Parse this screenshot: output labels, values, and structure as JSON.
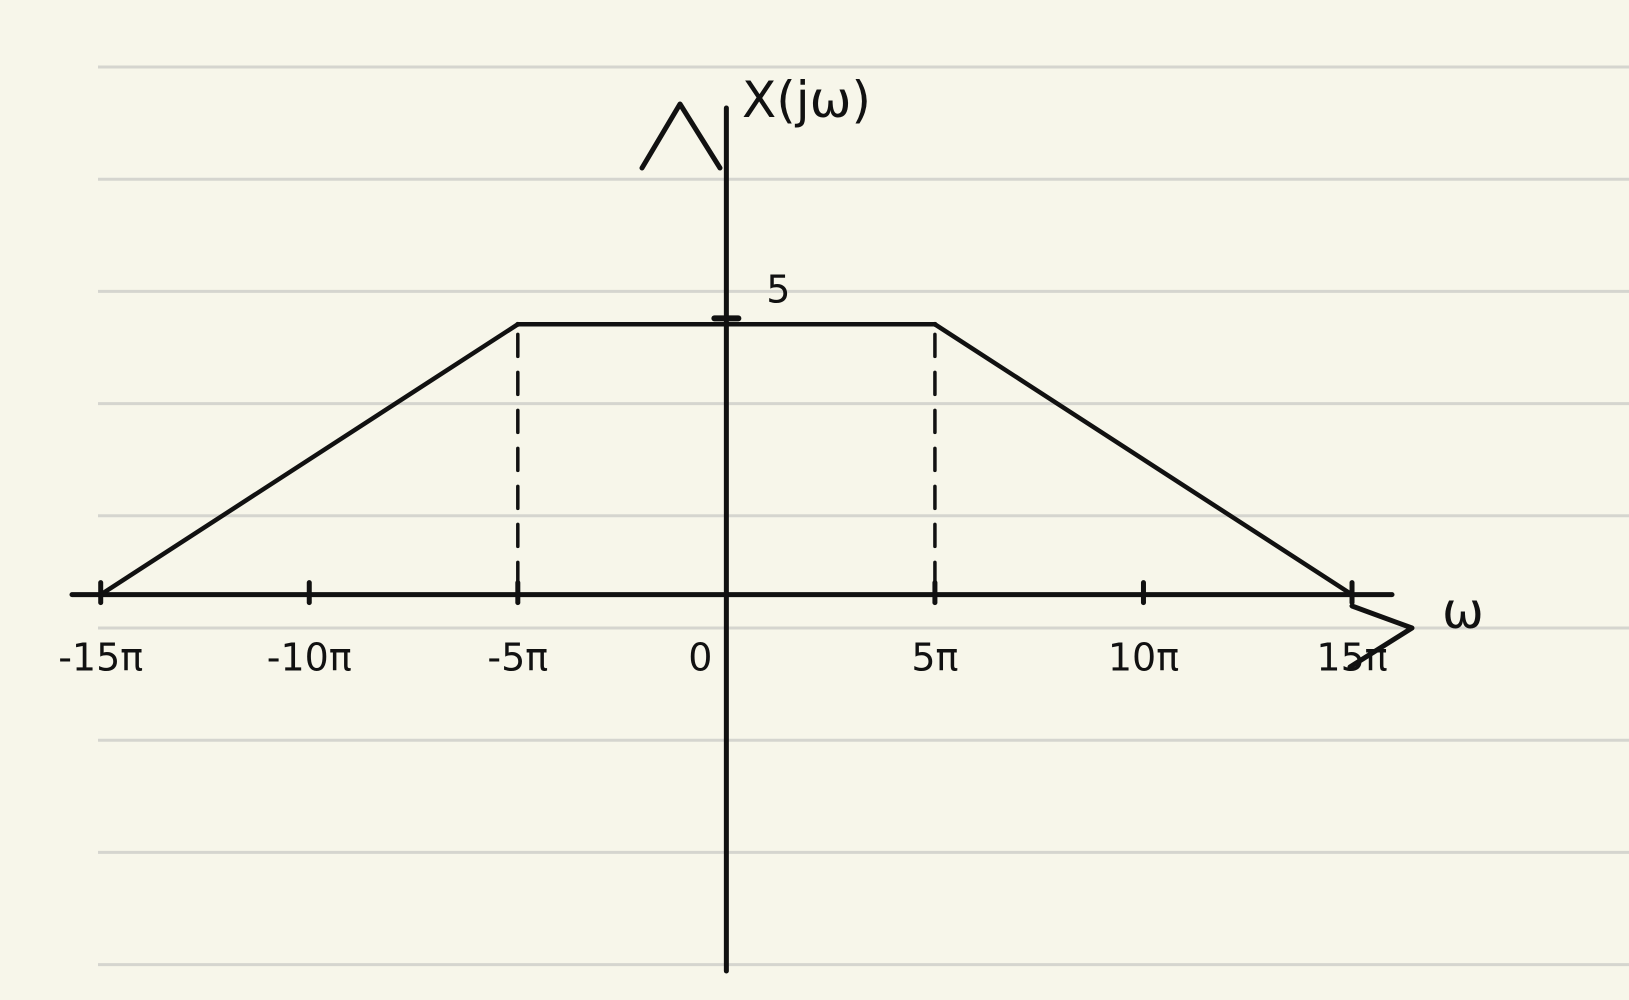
{
  "page": {
    "background_color": "#f7f6ea",
    "ruled_line_color": "#d5d5cf",
    "ink_color": "#111111"
  },
  "chart_data": {
    "type": "line",
    "title": "",
    "xlabel": "ω",
    "ylabel": "X(jω)",
    "xlim": [
      -16,
      22
    ],
    "ylim": [
      -7.5,
      11
    ],
    "x_ticks": [
      {
        "value": -15,
        "label": "-15π"
      },
      {
        "value": -10,
        "label": "-10π"
      },
      {
        "value": -5,
        "label": "-5π"
      },
      {
        "value": 0,
        "label": "0"
      },
      {
        "value": 5,
        "label": "5π"
      },
      {
        "value": 10,
        "label": "10π"
      },
      {
        "value": 15,
        "label": "15π"
      }
    ],
    "y_ticks": [
      {
        "value": 5,
        "label": "5"
      }
    ],
    "series": [
      {
        "x": [
          -15,
          -5,
          5,
          15
        ],
        "y": [
          0,
          5,
          5,
          0
        ]
      }
    ],
    "reference_lines": [
      {
        "x": -5,
        "from_y": 0,
        "to_y": 5,
        "style": "dashed"
      },
      {
        "x": 5,
        "from_y": 0,
        "to_y": 5,
        "style": "dashed"
      }
    ],
    "grid": false,
    "ruled_paper": true
  }
}
